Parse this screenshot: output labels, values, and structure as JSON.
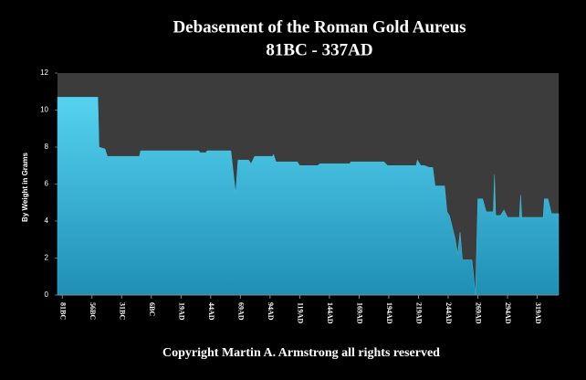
{
  "chart_data": {
    "type": "area",
    "title": "Debasement of the Roman Gold Aureus",
    "subtitle": "81BC - 337AD",
    "y_label": "By Weight in Grams",
    "footer": "Copyright Martin A. Armstrong all rights reserved",
    "color": "#3ec3e3",
    "x": [
      -85,
      -51,
      -50,
      -45,
      -43,
      -16,
      -15,
      34,
      35,
      40,
      41,
      61,
      65,
      67,
      76,
      78,
      81,
      96,
      97,
      99,
      117,
      119,
      134,
      136,
      161,
      162,
      190,
      193,
      217,
      218,
      221,
      224,
      228,
      231,
      233,
      241,
      243,
      245,
      247,
      250,
      252,
      254,
      256,
      264,
      267,
      269,
      273,
      276,
      282,
      283,
      284,
      288,
      291,
      294,
      304,
      305,
      306,
      324,
      325,
      328,
      331,
      337
    ],
    "values": [
      10.7,
      10.7,
      8.0,
      7.9,
      7.5,
      7.5,
      7.8,
      7.8,
      7.7,
      7.7,
      7.8,
      7.8,
      5.5,
      7.3,
      7.3,
      7.1,
      7.5,
      7.5,
      7.6,
      7.2,
      7.2,
      7.0,
      7.0,
      7.1,
      7.1,
      7.2,
      7.2,
      7.0,
      7.0,
      7.3,
      7.0,
      7.0,
      6.9,
      6.9,
      5.9,
      5.9,
      4.5,
      4.3,
      3.8,
      3.0,
      2.2,
      3.4,
      1.9,
      1.9,
      0,
      5.2,
      5.2,
      4.5,
      4.5,
      6.5,
      4.3,
      4.3,
      4.6,
      4.2,
      4.2,
      5.4,
      4.2,
      4.2,
      5.2,
      5.2,
      4.4,
      4.4
    ],
    "xlim": [
      -85,
      337
    ],
    "xticks": [
      {
        "value": -81,
        "label": "81BC"
      },
      {
        "value": -56,
        "label": "56BC"
      },
      {
        "value": -31,
        "label": "31BC"
      },
      {
        "value": -6,
        "label": "6BC"
      },
      {
        "value": 19,
        "label": "19AD"
      },
      {
        "value": 44,
        "label": "44AD"
      },
      {
        "value": 69,
        "label": "69AD"
      },
      {
        "value": 94,
        "label": "94AD"
      },
      {
        "value": 119,
        "label": "119AD"
      },
      {
        "value": 144,
        "label": "144AD"
      },
      {
        "value": 169,
        "label": "169AD"
      },
      {
        "value": 194,
        "label": "194AD"
      },
      {
        "value": 219,
        "label": "219AD"
      },
      {
        "value": 244,
        "label": "244AD"
      },
      {
        "value": 269,
        "label": "269AD"
      },
      {
        "value": 294,
        "label": "294AD"
      },
      {
        "value": 319,
        "label": "319AD"
      }
    ],
    "ylim": [
      0,
      12
    ],
    "yticks": [
      0,
      2,
      4,
      6,
      8,
      10,
      12
    ],
    "grid": false
  }
}
